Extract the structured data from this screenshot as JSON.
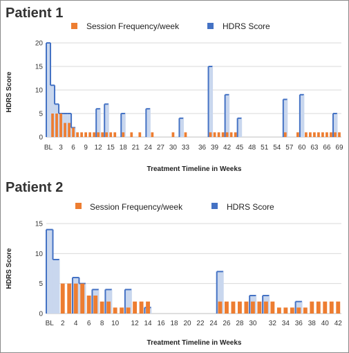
{
  "colors": {
    "session": "#ED7D31",
    "hdrs_line": "#4472C4",
    "hdrs_fill": "#C9D7EE",
    "grid": "#D9D9D9"
  },
  "chart_data": [
    {
      "type": "area",
      "title": "Patient 1",
      "xlabel": "Treatment Timeline in Weeks",
      "ylabel": "HDRS Score",
      "ylim": [
        0,
        20
      ],
      "yticks": [
        "0",
        "5",
        "10",
        "15",
        "20"
      ],
      "legend_position": "top",
      "grid": true,
      "xticks": [
        "BL",
        "3",
        "6",
        "9",
        "12",
        "15",
        "18",
        "21",
        "24",
        "27",
        "30",
        "33",
        "36",
        "39",
        "42",
        "45",
        "48",
        "51",
        "54",
        "57",
        "60",
        "63",
        "66",
        "69"
      ],
      "x_max": 70,
      "series": [
        {
          "name": "Session Frequency/week",
          "type": "bar",
          "values": [
            0,
            5,
            5,
            5,
            3,
            3,
            2,
            1,
            1,
            1,
            1,
            1,
            1,
            1,
            1,
            1,
            1,
            0,
            1,
            0,
            1,
            0,
            1,
            0,
            0,
            1,
            0,
            0,
            0,
            0,
            1,
            0,
            0,
            1,
            0,
            0,
            0,
            0,
            0,
            1,
            1,
            1,
            1,
            1,
            1,
            1,
            0,
            0,
            0,
            0,
            0,
            0,
            0,
            0,
            0,
            0,
            0,
            1,
            0,
            0,
            1,
            0,
            1,
            1,
            1,
            1,
            1,
            1,
            1,
            1,
            1
          ]
        },
        {
          "name": "HDRS Score",
          "type": "area",
          "values": [
            20,
            11,
            7,
            5,
            5,
            5,
            2,
            0,
            0,
            0,
            0,
            0,
            6,
            0,
            7,
            0,
            0,
            0,
            5,
            0,
            0,
            0,
            0,
            0,
            6,
            0,
            0,
            0,
            0,
            0,
            0,
            0,
            4,
            0,
            0,
            0,
            0,
            0,
            0,
            15,
            0,
            0,
            0,
            9,
            0,
            0,
            4,
            0,
            0,
            0,
            0,
            0,
            0,
            0,
            0,
            0,
            0,
            8,
            0,
            0,
            0,
            9,
            0,
            0,
            0,
            0,
            0,
            0,
            0,
            5,
            0
          ]
        }
      ]
    },
    {
      "type": "area",
      "title": "Patient 2",
      "xlabel": "Treatment Timeline in Weeks",
      "ylabel": "HDRS Score",
      "ylim": [
        0,
        15
      ],
      "yticks": [
        "0",
        "5",
        "10",
        "15"
      ],
      "legend_position": "top",
      "grid": true,
      "xticks": [
        "BL",
        "2",
        "4",
        "6",
        "8",
        "10",
        "12",
        "14",
        "16",
        "18",
        "20",
        "22",
        "24",
        "26",
        "28",
        "30",
        "32",
        "34",
        "36",
        "38",
        "40",
        "42"
      ],
      "x_max": 44,
      "series": [
        {
          "name": "Session Frequency/week",
          "type": "bar",
          "values": [
            0,
            0,
            5,
            5,
            5,
            5,
            3,
            3,
            2,
            2,
            1,
            1,
            1,
            2,
            2,
            2,
            0,
            0,
            0,
            0,
            0,
            0,
            0,
            0,
            0,
            0,
            2,
            2,
            2,
            2,
            2,
            2,
            2,
            2,
            2,
            1,
            1,
            1,
            1,
            1,
            2,
            2,
            2,
            2,
            2
          ]
        },
        {
          "name": "HDRS Score",
          "type": "area",
          "values": [
            14,
            9,
            0,
            0,
            6,
            5,
            0,
            4,
            0,
            4,
            0,
            0,
            4,
            0,
            0,
            1,
            0,
            0,
            0,
            0,
            0,
            0,
            0,
            0,
            0,
            0,
            7,
            0,
            0,
            0,
            0,
            3,
            0,
            3,
            0,
            0,
            0,
            0,
            2,
            0,
            0,
            0,
            0,
            0,
            0
          ]
        }
      ]
    }
  ]
}
